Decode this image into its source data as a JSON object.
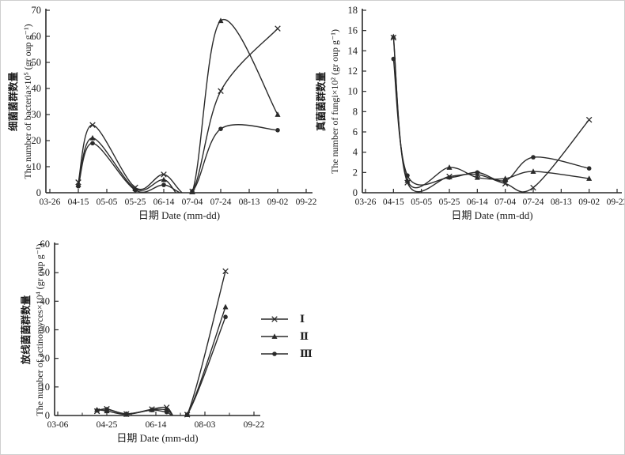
{
  "figure": {
    "background": "#ffffff",
    "ink_color": "#2a2a2a",
    "text_color": "#1a1a1a"
  },
  "legend": {
    "position": "right-of-bottom-chart",
    "items": [
      {
        "label": "Ⅰ",
        "marker": "cross"
      },
      {
        "label": "Ⅱ",
        "marker": "triangle"
      },
      {
        "label": "Ⅲ",
        "marker": "circle"
      }
    ]
  },
  "chart_data": [
    {
      "id": "bacteria",
      "type": "line",
      "title": "",
      "ylabel_cn": "细菌菌群数量",
      "ylabel": "The number of bacteria×10⁵ (gr oup g⁻¹)",
      "xlabel": "日期 Date (mm-dd)",
      "ylim": [
        0,
        70
      ],
      "y_step": 10,
      "x_tick_labels": [
        "03-26",
        "04-15",
        "05-05",
        "05-25",
        "06-14",
        "07-04",
        "07-24",
        "08-13",
        "09-02",
        "09-22"
      ],
      "x_tick_days": [
        85,
        105,
        125,
        145,
        165,
        185,
        205,
        225,
        245,
        265
      ],
      "x_dates_est": [
        "04-15",
        "04-25",
        "05-25",
        "06-14",
        "07-04",
        "07-24",
        "09-02"
      ],
      "x_days": [
        105,
        115,
        145,
        165,
        185,
        205,
        245
      ],
      "grid": false,
      "series": [
        {
          "name": "Ⅰ",
          "marker": "cross",
          "values": [
            4,
            26,
            2,
            7,
            0.5,
            39,
            63
          ]
        },
        {
          "name": "Ⅱ",
          "marker": "triangle",
          "values": [
            3,
            21,
            1.5,
            5,
            0.3,
            66,
            30
          ]
        },
        {
          "name": "Ⅲ",
          "marker": "circle",
          "values": [
            2.5,
            19,
            1,
            3,
            0.5,
            24.5,
            24
          ]
        }
      ]
    },
    {
      "id": "fungi",
      "type": "line",
      "title": "",
      "ylabel_cn": "真菌菌群数量",
      "ylabel": "The number of fungi×10² (gr oup g⁻¹)",
      "xlabel": "日期 Date (mm-dd)",
      "ylim": [
        0,
        18
      ],
      "y_step": 2,
      "x_tick_labels": [
        "03-26",
        "04-15",
        "05-05",
        "05-25",
        "06-14",
        "07-04",
        "07-24",
        "08-13",
        "09-02",
        "09-22"
      ],
      "x_tick_days": [
        85,
        105,
        125,
        145,
        165,
        185,
        205,
        225,
        245,
        265
      ],
      "x_dates_est": [
        "04-15",
        "04-25",
        "05-25",
        "06-14",
        "07-04",
        "07-24",
        "09-02"
      ],
      "x_days": [
        105,
        115,
        145,
        165,
        185,
        205,
        245
      ],
      "grid": false,
      "series": [
        {
          "name": "Ⅰ",
          "marker": "cross",
          "values": [
            15.3,
            1.0,
            1.6,
            1.8,
            0.9,
            0.5,
            7.2
          ]
        },
        {
          "name": "Ⅱ",
          "marker": "triangle",
          "values": [
            15.4,
            1.2,
            2.5,
            1.5,
            1.4,
            2.1,
            1.4
          ]
        },
        {
          "name": "Ⅲ",
          "marker": "circle",
          "values": [
            13.2,
            1.7,
            1.5,
            2.0,
            1.2,
            3.5,
            2.4
          ]
        }
      ]
    },
    {
      "id": "actinomyces",
      "type": "line",
      "title": "",
      "ylabel_cn": "放线菌菌群数量",
      "ylabel": "The number of actinomyces×10⁴ (gr oup g⁻¹)",
      "xlabel": "日期 Date (mm-dd)",
      "ylim": [
        0,
        60
      ],
      "y_step": 10,
      "x_tick_labels": [
        "03-06",
        "04-25",
        "06-14",
        "08-03",
        "09-22"
      ],
      "x_tick_days": [
        65,
        115,
        165,
        215,
        265
      ],
      "x_minor_tick_days": [
        90,
        140,
        190,
        240
      ],
      "x_dates_est": [
        "04-15",
        "04-25",
        "05-15",
        "06-10",
        "06-25",
        "07-16",
        "08-24"
      ],
      "x_days": [
        105,
        115,
        135,
        161,
        176,
        197,
        236
      ],
      "grid": false,
      "series": [
        {
          "name": "Ⅰ",
          "marker": "cross",
          "values": [
            1.5,
            2.3,
            0.5,
            2.2,
            2.8,
            0.3,
            50.5
          ]
        },
        {
          "name": "Ⅱ",
          "marker": "triangle",
          "values": [
            2.0,
            1.6,
            0.4,
            2.0,
            2.0,
            0.3,
            38
          ]
        },
        {
          "name": "Ⅲ",
          "marker": "circle",
          "values": [
            1.8,
            2.2,
            0.6,
            1.9,
            1.2,
            0.3,
            34.5
          ]
        }
      ]
    }
  ]
}
